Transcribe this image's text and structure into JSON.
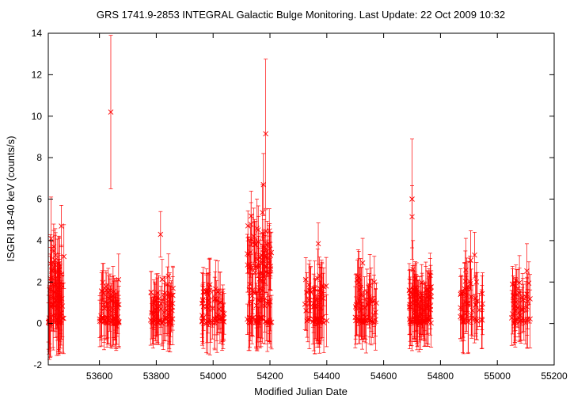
{
  "chart_data": {
    "type": "scatter",
    "title": "GRS 1741.9-2853   INTEGRAL Galactic Bulge Monitoring.  Last Update: 22 Oct 2009 10:32",
    "xlabel": "Modified Julian Date",
    "ylabel": "ISGRI 18-40 keV (counts/s)",
    "xlim": [
      53420,
      55200
    ],
    "ylim": [
      -2,
      14
    ],
    "xticks": [
      53600,
      53800,
      54000,
      54200,
      54400,
      54600,
      54800,
      55000,
      55200
    ],
    "yticks": [
      -2,
      0,
      2,
      4,
      6,
      8,
      10,
      12,
      14
    ],
    "marker": "x",
    "color": "#ff0000",
    "grid": false,
    "clusters": [
      {
        "range": [
          53420,
          53475
        ],
        "level": 1.5,
        "spread": 1.4,
        "count": 70,
        "err": 1.5
      },
      {
        "range": [
          53600,
          53670
        ],
        "level": 0.8,
        "spread": 0.9,
        "count": 60,
        "err": 1.2
      },
      {
        "range": [
          53780,
          53860
        ],
        "level": 0.8,
        "spread": 0.9,
        "count": 60,
        "err": 1.2
      },
      {
        "range": [
          53960,
          54040
        ],
        "level": 0.8,
        "spread": 0.9,
        "count": 55,
        "err": 1.3
      },
      {
        "range": [
          54120,
          54210
        ],
        "level": 2.8,
        "spread": 1.5,
        "count": 110,
        "err": 1.2
      },
      {
        "range": [
          54320,
          54400
        ],
        "level": 1.1,
        "spread": 1.0,
        "count": 55,
        "err": 1.3
      },
      {
        "range": [
          54500,
          54575
        ],
        "level": 1.3,
        "spread": 1.1,
        "count": 55,
        "err": 1.3
      },
      {
        "range": [
          54690,
          54770
        ],
        "level": 1.0,
        "spread": 1.0,
        "count": 90,
        "err": 1.2
      },
      {
        "range": [
          54870,
          54950
        ],
        "level": 1.2,
        "spread": 1.0,
        "count": 45,
        "err": 1.3
      },
      {
        "range": [
          55050,
          55120
        ],
        "level": 1.1,
        "spread": 0.9,
        "count": 45,
        "err": 1.2
      }
    ],
    "notable_points": [
      {
        "x": 53430,
        "y": 4.1,
        "err": 2.0
      },
      {
        "x": 53466,
        "y": 4.7,
        "err": 1.0
      },
      {
        "x": 53640,
        "y": 10.2,
        "err": 3.7
      },
      {
        "x": 53815,
        "y": 4.3,
        "err": 1.1
      },
      {
        "x": 54177,
        "y": 6.7,
        "err": 1.5
      },
      {
        "x": 54185,
        "y": 9.15,
        "err": 3.6
      },
      {
        "x": 54370,
        "y": 3.85,
        "err": 1.0
      },
      {
        "x": 54700,
        "y": 6.0,
        "err": 2.9
      },
      {
        "x": 54700,
        "y": 5.15,
        "err": 1.5
      },
      {
        "x": 54920,
        "y": 3.3,
        "err": 1.1
      }
    ]
  }
}
